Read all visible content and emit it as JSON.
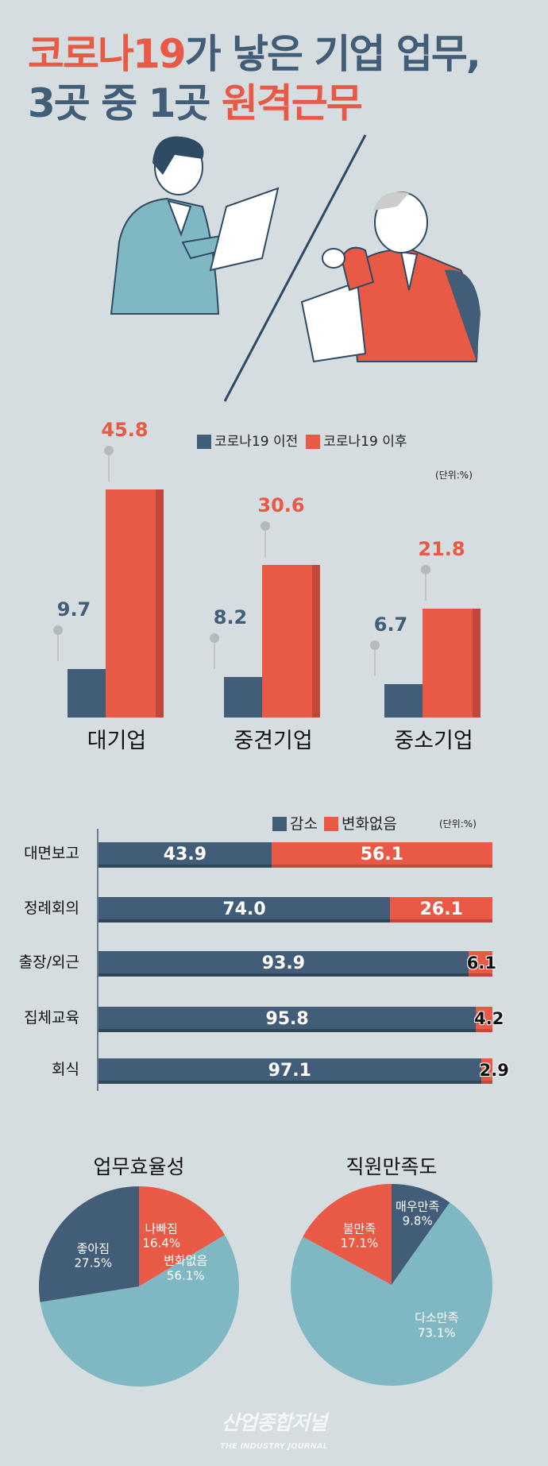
{
  "title": {
    "line1_red": "코로나19",
    "line1_rest": "가 낳은 기업 업무,",
    "line2_rest": "3곳 중 1곳 ",
    "line2_red": "원격근무"
  },
  "colors": {
    "blue": "#415d78",
    "red": "#e85a45",
    "teal": "#7fb8c2",
    "background": "#d6dde1"
  },
  "chart_data": [
    {
      "type": "bar",
      "unit": "(단위:%)",
      "categories": [
        "대기업",
        "중견기업",
        "중소기업"
      ],
      "series": [
        {
          "name": "코로나19 이전",
          "values": [
            9.7,
            8.2,
            6.7
          ]
        },
        {
          "name": "코로나19 이후",
          "values": [
            45.8,
            30.6,
            21.8
          ]
        }
      ]
    },
    {
      "type": "bar",
      "orientation": "horizontal",
      "stacked": true,
      "unit": "(단위:%)",
      "categories": [
        "대면보고",
        "정례회의",
        "출장/외근",
        "집체교육",
        "회식"
      ],
      "series": [
        {
          "name": "감소",
          "values": [
            43.9,
            74.0,
            93.9,
            95.8,
            97.1
          ]
        },
        {
          "name": "변화없음",
          "values": [
            56.1,
            26.1,
            6.1,
            4.2,
            2.9
          ]
        }
      ]
    },
    {
      "type": "pie",
      "title": "업무효율성",
      "slices": [
        {
          "label": "나빠짐",
          "value": 16.4
        },
        {
          "label": "변화없음",
          "value": 56.1
        },
        {
          "label": "좋아짐",
          "value": 27.5
        }
      ]
    },
    {
      "type": "pie",
      "title": "직원만족도",
      "slices": [
        {
          "label": "매우만족",
          "value": 9.8
        },
        {
          "label": "다소만족",
          "value": 73.1
        },
        {
          "label": "불만족",
          "value": 17.1
        }
      ]
    }
  ],
  "logo": {
    "korean": "산업종합저널",
    "english": "THE INDUSTRY JOURNAL"
  }
}
